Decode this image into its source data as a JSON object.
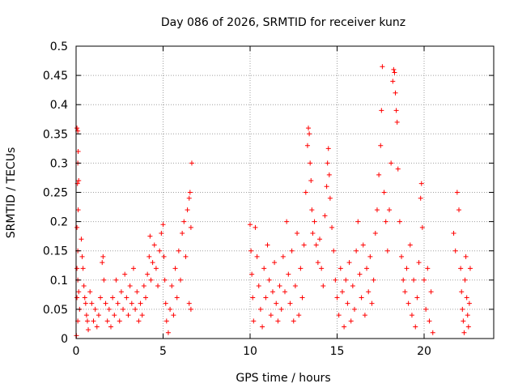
{
  "chart_data": {
    "type": "scatter",
    "title": "Day 086 of 2026, SRMTID for receiver kunz",
    "xlabel": "GPS time / hours",
    "ylabel": "SRMTID / TECUs",
    "xlim": [
      0,
      24
    ],
    "ylim": [
      0,
      0.5
    ],
    "xticks": [
      0,
      5,
      10,
      15,
      20
    ],
    "yticks": [
      0,
      0.05,
      0.1,
      0.15,
      0.2,
      0.25,
      0.3,
      0.35,
      0.4,
      0.45,
      0.5
    ],
    "xtick_labels": [
      "0",
      "5",
      "10",
      "15",
      "20"
    ],
    "ytick_labels": [
      "0",
      "0.05",
      "0.1",
      "0.15",
      "0.2",
      "0.25",
      "0.3",
      "0.35",
      "0.4",
      "0.45",
      "0.5"
    ],
    "grid": true,
    "marker": "+",
    "colors": {
      "points": "#ff0000",
      "grid": "#a0a0a0",
      "axes": "#000000"
    },
    "series": [
      {
        "name": "SRMTID",
        "points": [
          [
            0.05,
            0.36
          ],
          [
            0.1,
            0.355
          ],
          [
            0.12,
            0.32
          ],
          [
            0.1,
            0.3
          ],
          [
            0.15,
            0.27
          ],
          [
            0.08,
            0.265
          ],
          [
            0.12,
            0.22
          ],
          [
            0.05,
            0.19
          ],
          [
            0.1,
            0.15
          ],
          [
            0.05,
            0.12
          ],
          [
            0.1,
            0.1
          ],
          [
            0.15,
            0.08
          ],
          [
            0.05,
            0.07
          ],
          [
            0.2,
            0.05
          ],
          [
            0.1,
            0.03
          ],
          [
            0.02,
            0.005
          ],
          [
            0.3,
            0.17
          ],
          [
            0.35,
            0.14
          ],
          [
            0.4,
            0.12
          ],
          [
            0.45,
            0.09
          ],
          [
            0.5,
            0.07
          ],
          [
            0.55,
            0.06
          ],
          [
            0.6,
            0.04
          ],
          [
            0.65,
            0.03
          ],
          [
            0.7,
            0.015
          ],
          [
            0.8,
            0.08
          ],
          [
            0.9,
            0.06
          ],
          [
            1.0,
            0.03
          ],
          [
            1.1,
            0.05
          ],
          [
            1.2,
            0.02
          ],
          [
            1.3,
            0.04
          ],
          [
            1.4,
            0.07
          ],
          [
            1.5,
            0.13
          ],
          [
            1.55,
            0.14
          ],
          [
            1.6,
            0.1
          ],
          [
            1.7,
            0.06
          ],
          [
            1.8,
            0.03
          ],
          [
            1.9,
            0.05
          ],
          [
            2.0,
            0.02
          ],
          [
            2.1,
            0.07
          ],
          [
            2.2,
            0.04
          ],
          [
            2.3,
            0.1
          ],
          [
            2.4,
            0.06
          ],
          [
            2.5,
            0.03
          ],
          [
            2.6,
            0.08
          ],
          [
            2.7,
            0.05
          ],
          [
            2.8,
            0.11
          ],
          [
            2.9,
            0.07
          ],
          [
            3.0,
            0.04
          ],
          [
            3.1,
            0.09
          ],
          [
            3.2,
            0.06
          ],
          [
            3.3,
            0.12
          ],
          [
            3.4,
            0.05
          ],
          [
            3.5,
            0.08
          ],
          [
            3.6,
            0.03
          ],
          [
            3.7,
            0.06
          ],
          [
            3.8,
            0.04
          ],
          [
            3.9,
            0.09
          ],
          [
            4.0,
            0.07
          ],
          [
            4.1,
            0.11
          ],
          [
            4.2,
            0.14
          ],
          [
            4.25,
            0.175
          ],
          [
            4.3,
            0.1
          ],
          [
            4.4,
            0.13
          ],
          [
            4.5,
            0.16
          ],
          [
            4.6,
            0.12
          ],
          [
            4.7,
            0.09
          ],
          [
            4.8,
            0.15
          ],
          [
            4.9,
            0.18
          ],
          [
            5.0,
            0.195
          ],
          [
            5.05,
            0.14
          ],
          [
            5.1,
            0.1
          ],
          [
            5.15,
            0.06
          ],
          [
            5.2,
            0.03
          ],
          [
            5.3,
            0.01
          ],
          [
            5.4,
            0.05
          ],
          [
            5.5,
            0.09
          ],
          [
            5.6,
            0.04
          ],
          [
            5.7,
            0.12
          ],
          [
            5.8,
            0.07
          ],
          [
            5.9,
            0.15
          ],
          [
            6.0,
            0.1
          ],
          [
            6.1,
            0.18
          ],
          [
            6.2,
            0.2
          ],
          [
            6.3,
            0.14
          ],
          [
            6.4,
            0.22
          ],
          [
            6.5,
            0.24
          ],
          [
            6.55,
            0.25
          ],
          [
            6.6,
            0.19
          ],
          [
            6.65,
            0.3
          ],
          [
            6.5,
            0.06
          ],
          [
            6.6,
            0.05
          ],
          [
            10.0,
            0.195
          ],
          [
            10.05,
            0.15
          ],
          [
            10.1,
            0.11
          ],
          [
            10.15,
            0.07
          ],
          [
            10.2,
            0.03
          ],
          [
            10.3,
            0.19
          ],
          [
            10.4,
            0.14
          ],
          [
            10.5,
            0.09
          ],
          [
            10.6,
            0.05
          ],
          [
            10.7,
            0.02
          ],
          [
            10.8,
            0.12
          ],
          [
            10.9,
            0.07
          ],
          [
            11.0,
            0.16
          ],
          [
            11.1,
            0.1
          ],
          [
            11.2,
            0.04
          ],
          [
            11.3,
            0.08
          ],
          [
            11.4,
            0.13
          ],
          [
            11.5,
            0.06
          ],
          [
            11.6,
            0.03
          ],
          [
            11.7,
            0.09
          ],
          [
            11.8,
            0.05
          ],
          [
            11.9,
            0.14
          ],
          [
            12.0,
            0.08
          ],
          [
            12.1,
            0.2
          ],
          [
            12.2,
            0.11
          ],
          [
            12.3,
            0.06
          ],
          [
            12.4,
            0.15
          ],
          [
            12.5,
            0.03
          ],
          [
            12.6,
            0.09
          ],
          [
            12.7,
            0.18
          ],
          [
            12.8,
            0.04
          ],
          [
            12.9,
            0.12
          ],
          [
            13.0,
            0.07
          ],
          [
            13.1,
            0.16
          ],
          [
            13.2,
            0.25
          ],
          [
            13.3,
            0.33
          ],
          [
            13.35,
            0.36
          ],
          [
            13.4,
            0.35
          ],
          [
            13.45,
            0.3
          ],
          [
            13.5,
            0.27
          ],
          [
            13.55,
            0.22
          ],
          [
            13.6,
            0.18
          ],
          [
            13.7,
            0.2
          ],
          [
            13.8,
            0.16
          ],
          [
            13.9,
            0.13
          ],
          [
            14.0,
            0.17
          ],
          [
            14.1,
            0.12
          ],
          [
            14.2,
            0.09
          ],
          [
            14.3,
            0.21
          ],
          [
            14.4,
            0.26
          ],
          [
            14.45,
            0.3
          ],
          [
            14.5,
            0.325
          ],
          [
            14.55,
            0.28
          ],
          [
            14.6,
            0.24
          ],
          [
            14.7,
            0.19
          ],
          [
            14.8,
            0.15
          ],
          [
            14.9,
            0.1
          ],
          [
            15.0,
            0.07
          ],
          [
            15.1,
            0.04
          ],
          [
            15.2,
            0.12
          ],
          [
            15.3,
            0.08
          ],
          [
            15.4,
            0.02
          ],
          [
            15.5,
            0.1
          ],
          [
            15.6,
            0.06
          ],
          [
            15.7,
            0.13
          ],
          [
            15.8,
            0.03
          ],
          [
            15.9,
            0.09
          ],
          [
            16.0,
            0.05
          ],
          [
            16.1,
            0.15
          ],
          [
            16.2,
            0.2
          ],
          [
            16.3,
            0.11
          ],
          [
            16.4,
            0.07
          ],
          [
            16.5,
            0.16
          ],
          [
            16.6,
            0.04
          ],
          [
            16.7,
            0.12
          ],
          [
            16.8,
            0.08
          ],
          [
            16.9,
            0.14
          ],
          [
            17.0,
            0.06
          ],
          [
            17.1,
            0.1
          ],
          [
            17.2,
            0.18
          ],
          [
            17.3,
            0.22
          ],
          [
            17.4,
            0.28
          ],
          [
            17.5,
            0.33
          ],
          [
            17.55,
            0.39
          ],
          [
            17.6,
            0.465
          ],
          [
            17.7,
            0.25
          ],
          [
            17.8,
            0.2
          ],
          [
            17.9,
            0.15
          ],
          [
            18.0,
            0.22
          ],
          [
            18.1,
            0.3
          ],
          [
            18.2,
            0.44
          ],
          [
            18.25,
            0.46
          ],
          [
            18.3,
            0.455
          ],
          [
            18.35,
            0.42
          ],
          [
            18.4,
            0.39
          ],
          [
            18.45,
            0.37
          ],
          [
            18.5,
            0.29
          ],
          [
            18.6,
            0.2
          ],
          [
            18.7,
            0.14
          ],
          [
            18.8,
            0.1
          ],
          [
            18.9,
            0.08
          ],
          [
            19.0,
            0.12
          ],
          [
            19.1,
            0.06
          ],
          [
            19.2,
            0.16
          ],
          [
            19.3,
            0.04
          ],
          [
            19.4,
            0.1
          ],
          [
            19.5,
            0.02
          ],
          [
            19.6,
            0.07
          ],
          [
            19.7,
            0.13
          ],
          [
            19.8,
            0.24
          ],
          [
            19.85,
            0.265
          ],
          [
            19.9,
            0.19
          ],
          [
            20.0,
            0.1
          ],
          [
            20.1,
            0.05
          ],
          [
            20.2,
            0.12
          ],
          [
            20.3,
            0.03
          ],
          [
            20.4,
            0.08
          ],
          [
            20.5,
            0.01
          ],
          [
            21.7,
            0.18
          ],
          [
            21.8,
            0.15
          ],
          [
            21.9,
            0.25
          ],
          [
            22.0,
            0.22
          ],
          [
            22.1,
            0.12
          ],
          [
            22.15,
            0.08
          ],
          [
            22.2,
            0.05
          ],
          [
            22.25,
            0.03
          ],
          [
            22.3,
            0.01
          ],
          [
            22.35,
            0.1
          ],
          [
            22.4,
            0.14
          ],
          [
            22.45,
            0.07
          ],
          [
            22.5,
            0.04
          ],
          [
            22.55,
            0.02
          ],
          [
            22.6,
            0.06
          ],
          [
            22.65,
            0.12
          ]
        ]
      }
    ]
  }
}
